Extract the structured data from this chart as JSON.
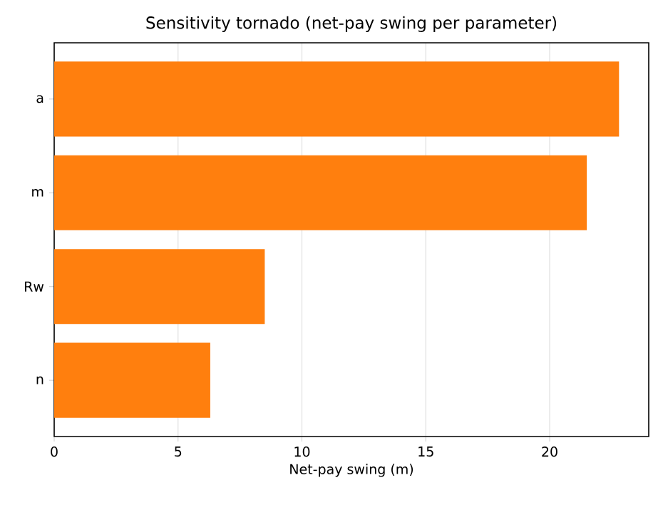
{
  "chart_data": {
    "type": "bar",
    "orientation": "horizontal",
    "title": "Sensitivity tornado (net-pay swing per parameter)",
    "xlabel": "Net-pay swing (m)",
    "categories": [
      "a",
      "m",
      "Rw",
      "n"
    ],
    "values": [
      22.8,
      21.5,
      8.5,
      6.3
    ],
    "color": "#ff7f0e",
    "xlim": [
      0,
      24
    ],
    "xticks": [
      0,
      5,
      10,
      15,
      20
    ],
    "grid": "x"
  }
}
